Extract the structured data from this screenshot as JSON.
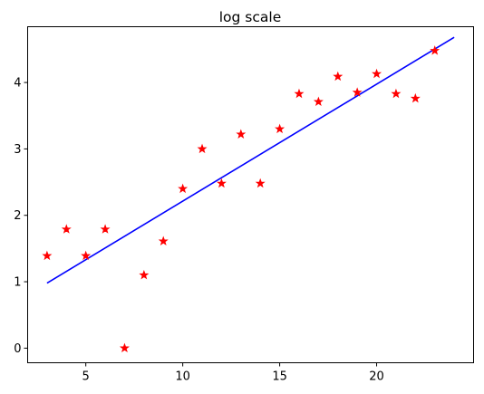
{
  "chart_data": {
    "type": "scatter",
    "title": "log scale",
    "xlabel": "",
    "ylabel": "",
    "xlim": [
      2.0,
      25.0
    ],
    "ylim": [
      -0.22,
      4.84
    ],
    "xticks": [
      5,
      10,
      15,
      20
    ],
    "yticks": [
      0,
      1,
      2,
      3,
      4
    ],
    "grid": false,
    "legend": "none",
    "points": {
      "x": [
        3,
        4,
        5,
        6,
        7,
        8,
        9,
        10,
        11,
        12,
        13,
        14,
        15,
        16,
        17,
        18,
        19,
        20,
        21,
        22,
        23
      ],
      "y": [
        1.39,
        1.79,
        1.39,
        1.79,
        0.0,
        1.1,
        1.61,
        2.4,
        3.0,
        2.48,
        3.22,
        2.48,
        3.3,
        3.83,
        3.71,
        4.09,
        3.85,
        4.13,
        3.83,
        3.76,
        4.48
      ],
      "marker": "star",
      "color": "#ff0000"
    },
    "fit_line": {
      "x": [
        3,
        24
      ],
      "y": [
        0.98,
        4.68
      ],
      "color": "#0000ff"
    }
  }
}
